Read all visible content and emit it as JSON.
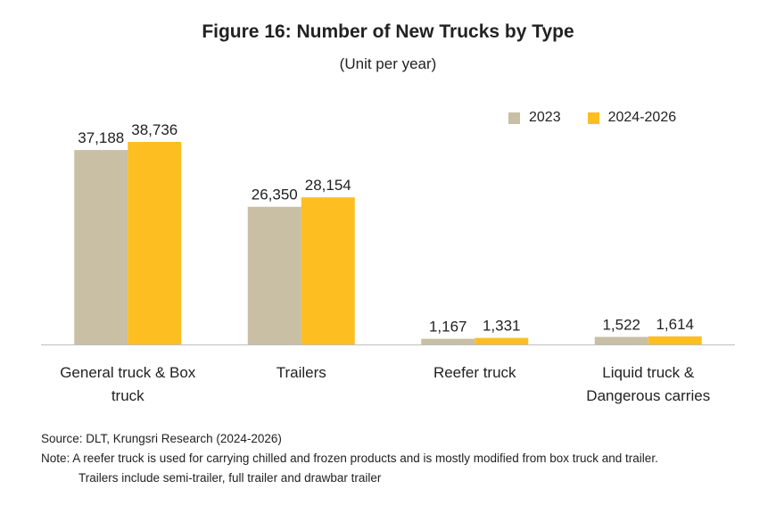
{
  "title": "Figure 16: Number of New Trucks by Type",
  "subtitle": "(Unit per year)",
  "legend": [
    {
      "label": "2023",
      "color": "#C8BFA4"
    },
    {
      "label": "2024-2026",
      "color": "#FDBE22"
    }
  ],
  "chart_data": {
    "type": "bar",
    "categories": [
      [
        "General truck & Box",
        "truck"
      ],
      [
        "Trailers"
      ],
      [
        "Reefer truck"
      ],
      [
        "Liquid  truck &",
        "Dangerous carries"
      ]
    ],
    "series": [
      {
        "name": "2023",
        "values": [
          37188,
          26350,
          1167,
          1522
        ],
        "labels": [
          "37,188",
          "26,350",
          "1,167",
          "1,522"
        ],
        "color": "#C8BFA4"
      },
      {
        "name": "2024-2026",
        "values": [
          38736,
          28154,
          1331,
          1614
        ],
        "labels": [
          "38,736",
          "28,154",
          "1,331",
          "1,614"
        ],
        "color": "#FDBE22"
      }
    ],
    "ylim": [
      0,
      45000
    ],
    "xlabel": "",
    "ylabel": "",
    "grid": false,
    "legend_position": "top-right"
  },
  "notes": {
    "source": "Source: DLT, Krungsri Research (2024-2026)",
    "note_line1": "Note: A reefer truck is used for carrying chilled and frozen products and is mostly modified from box truck and trailer.",
    "note_line2": "Trailers include semi-trailer, full trailer and drawbar trailer"
  }
}
